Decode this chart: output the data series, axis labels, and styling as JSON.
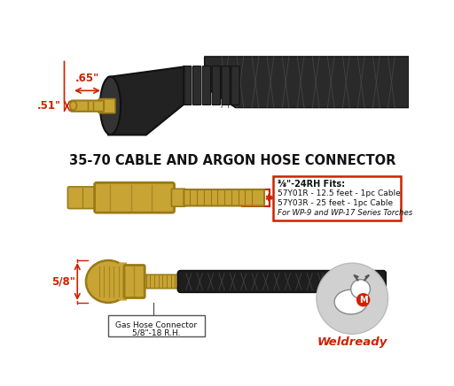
{
  "bg_color": "#ffffff",
  "title": "35-70 CABLE AND ARGON HOSE CONNECTOR",
  "title_fontsize": 10.5,
  "title_fontweight": "bold",
  "dim_color": "#cc2200",
  "brass_face": "#C8A435",
  "brass_edge": "#9A7A18",
  "black_face": "#1a1a1a",
  "black_edge": "#111111",
  "annotation_box": {
    "line1": "⅜\"-24RH Fits:",
    "line2": "57Y01R - 12.5 feet - 1pc Cable",
    "line3": "57Y03R - 25 feet - 1pc Cable",
    "line4": "For WP-9 and WP-17 Series Torches"
  },
  "dim_065": ".65\"",
  "dim_051": ".51\"",
  "dim_38": "⅜\"",
  "dim_58": "5/8\"",
  "label_gas_line1": "Gas Hose Connector",
  "label_gas_line2": "5/8\"-18 R.H.",
  "weldready_text": "Weldready"
}
